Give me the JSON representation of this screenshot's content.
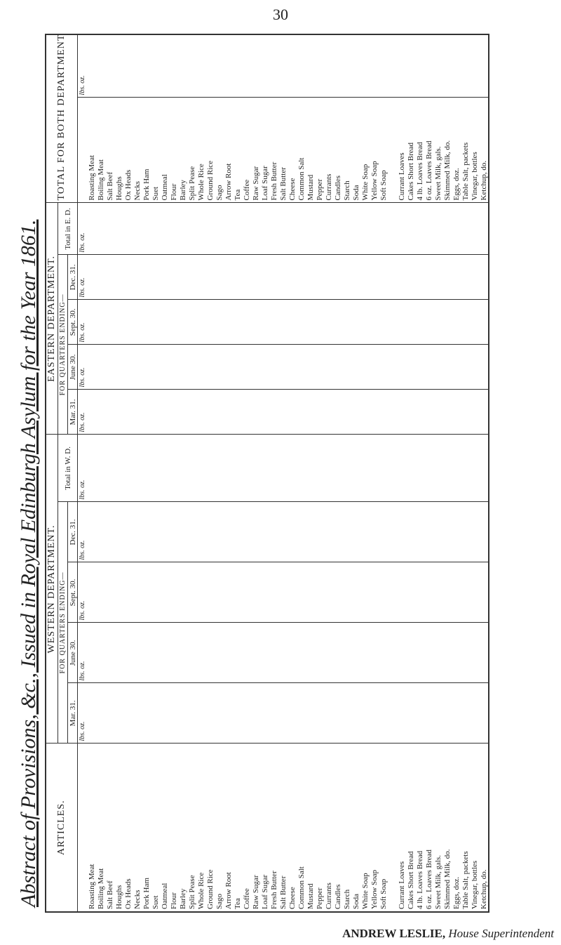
{
  "header": {
    "page": "30",
    "title": "Abstract of Provisions, &c., Issued in Royal Edinburgh Asylum for the Year 1861."
  },
  "table": {
    "articles_heading": "ARTICLES.",
    "western": {
      "title": "WESTERN DEPARTMENT.",
      "subtitle": "FOR QUARTERS ENDING—",
      "columns": [
        "Mar. 31.",
        "June 30.",
        "Sept. 30.",
        "Dec. 31.",
        "Total in W. D."
      ]
    },
    "eastern": {
      "title": "EASTERN DEPARTMENT.",
      "subtitle": "FOR QUARTERS ENDING—",
      "columns": [
        "Mar. 31.",
        "June 30.",
        "Sept. 30.",
        "Dec. 31.",
        "Total in E. D."
      ]
    },
    "both": {
      "title": "TOTAL FOR BOTH DEPARTMENTS."
    },
    "units": "lbs. oz.",
    "articles": [
      "Roasting Meat",
      "Boiling Meat",
      "Salt Beef",
      "Houghs",
      "Ox Heads",
      "Necks",
      "Pork Ham",
      "Suet",
      "Oatmeal",
      "Flour",
      "Barley",
      "Split Pease",
      "Whole Rice",
      "Ground Rice",
      "Sago",
      "Arrow Root",
      "Tea",
      "Coffee",
      "Raw Sugar",
      "Loaf Sugar",
      "Fresh Butter",
      "Salt Butter",
      "Cheese",
      "Common Salt",
      "Mustard",
      "Pepper",
      "Currants",
      "Candles",
      "Starch",
      "Soda",
      "White Soap",
      "Yellow Soap",
      "Soft Soap"
    ],
    "articles_other": [
      "Currant Loaves",
      "Cakes Short Bread",
      "4 lb. Loaves Bread",
      "6 oz. Loaves Bread",
      "Sweet Milk, gals.",
      "Skimmed Milk, do.",
      "Eggs, doz.",
      "Table Salt, packets",
      "Vinegar, bottles",
      "Ketchup, do."
    ]
  },
  "footer": {
    "name": "ANDREW LESLIE,",
    "role": "House Superintendent"
  }
}
